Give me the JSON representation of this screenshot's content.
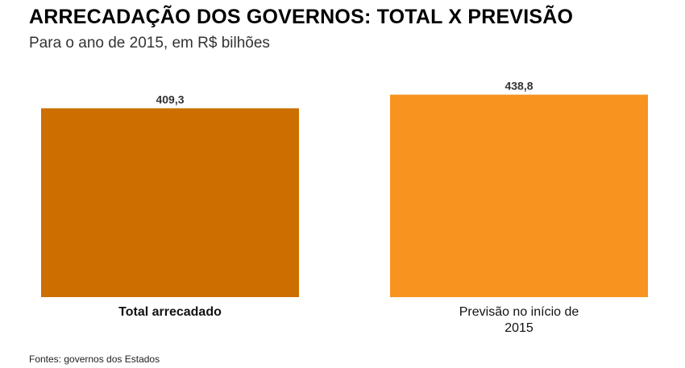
{
  "chart_data": {
    "type": "bar",
    "title": "ARRECADAÇÃO DOS GOVERNOS: TOTAL X PREVISÃO",
    "subtitle": "Para o ano de 2015, em R$ bilhões",
    "categories": [
      [
        "Total arrecadado"
      ],
      [
        "Previsão no início de",
        "2015"
      ]
    ],
    "values": [
      409.3,
      438.8
    ],
    "value_labels": [
      "409,3",
      "438,8"
    ],
    "colors": [
      "#CC6F00",
      "#F7931E"
    ],
    "category_bold": [
      true,
      false
    ],
    "xlabel": "",
    "ylabel": "",
    "grid": false,
    "legend": "none"
  },
  "source": "Fontes: governos dos Estados"
}
